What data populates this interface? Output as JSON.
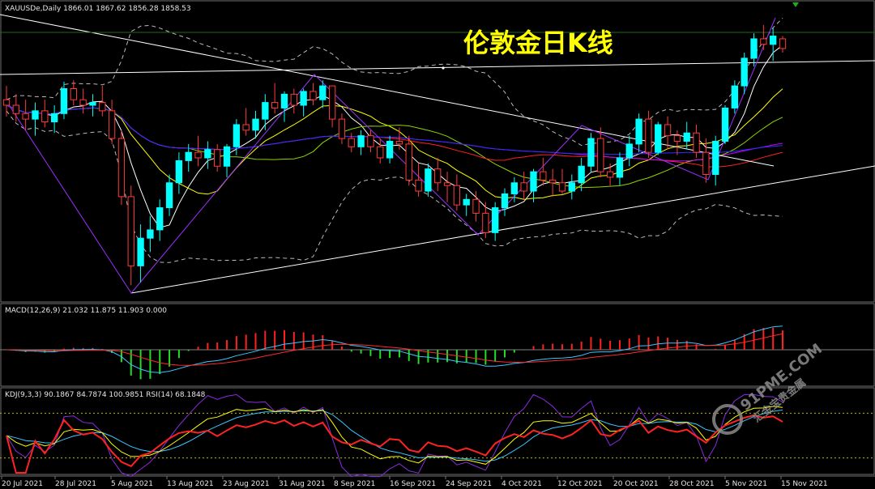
{
  "main_header": "XAUUSDe,Daily  1866.01 1867.62 1856.28 1858.53",
  "overlay_title": "伦敦金日K线",
  "macd_header": "MACD(12,26,9) 21.032 11.875 11.903 0.000",
  "kdj_header": "KDJ(9,3,3) 90.1867 84.7874 100.9851  RSI(14) 68.1848",
  "watermark": {
    "name": "91PME.COM",
    "tagline": "汇金宝贵金属"
  },
  "x_axis_labels": [
    "20 Jul 2021",
    "28 Jul 2021",
    "5 Aug 2021",
    "13 Aug 2021",
    "23 Aug 2021",
    "31 Aug 2021",
    "8 Sep 2021",
    "16 Sep 2021",
    "24 Sep 2021",
    "4 Oct 2021",
    "12 Oct 2021",
    "20 Oct 2021",
    "28 Oct 2021",
    "5 Nov 2021",
    "15 Nov 2021"
  ],
  "colors": {
    "bull_candle": "#00ffff",
    "bear_candle": "#ff3b3b",
    "macd_pos": "#ff2020",
    "macd_neg": "#22dd22",
    "ma_fast": "#ffffff",
    "ma_yellow": "#ffff00",
    "ma_green": "#8fd400",
    "ma_purple": "#c000ff",
    "ma_blue": "#2f2fff",
    "ma_red": "#ff2020",
    "trendline": "#ffffff",
    "zigzag": "#9b30ff"
  },
  "chart_data": {
    "type": "candlestick",
    "symbol": "XAUUSDe",
    "timeframe": "Daily",
    "last_bar": {
      "open": 1866.01,
      "high": 1867.62,
      "low": 1856.28,
      "close": 1858.53
    },
    "candles": [
      [
        1822,
        1832,
        1810,
        1818
      ],
      [
        1818,
        1826,
        1806,
        1812
      ],
      [
        1812,
        1822,
        1800,
        1808
      ],
      [
        1808,
        1820,
        1796,
        1814
      ],
      [
        1814,
        1822,
        1802,
        1806
      ],
      [
        1806,
        1818,
        1798,
        1812
      ],
      [
        1812,
        1835,
        1808,
        1830
      ],
      [
        1830,
        1836,
        1818,
        1822
      ],
      [
        1822,
        1830,
        1812,
        1818
      ],
      [
        1818,
        1826,
        1810,
        1820
      ],
      [
        1820,
        1832,
        1810,
        1814
      ],
      [
        1814,
        1822,
        1790,
        1794
      ],
      [
        1794,
        1800,
        1746,
        1752
      ],
      [
        1752,
        1760,
        1688,
        1702
      ],
      [
        1702,
        1732,
        1690,
        1722
      ],
      [
        1722,
        1738,
        1712,
        1728
      ],
      [
        1728,
        1750,
        1720,
        1744
      ],
      [
        1744,
        1768,
        1738,
        1762
      ],
      [
        1762,
        1784,
        1754,
        1778
      ],
      [
        1778,
        1790,
        1770,
        1784
      ],
      [
        1784,
        1796,
        1774,
        1780
      ],
      [
        1780,
        1792,
        1772,
        1786
      ],
      [
        1786,
        1790,
        1770,
        1774
      ],
      [
        1774,
        1790,
        1766,
        1788
      ],
      [
        1788,
        1808,
        1782,
        1804
      ],
      [
        1804,
        1816,
        1796,
        1800
      ],
      [
        1800,
        1814,
        1794,
        1808
      ],
      [
        1808,
        1826,
        1800,
        1820
      ],
      [
        1820,
        1834,
        1812,
        1816
      ],
      [
        1816,
        1828,
        1806,
        1826
      ],
      [
        1826,
        1830,
        1812,
        1818
      ],
      [
        1818,
        1830,
        1810,
        1828
      ],
      [
        1828,
        1834,
        1818,
        1822
      ],
      [
        1822,
        1836,
        1816,
        1832
      ],
      [
        1832,
        1832,
        1802,
        1808
      ],
      [
        1808,
        1812,
        1790,
        1794
      ],
      [
        1794,
        1798,
        1784,
        1788
      ],
      [
        1788,
        1800,
        1782,
        1796
      ],
      [
        1796,
        1800,
        1784,
        1788
      ],
      [
        1788,
        1794,
        1776,
        1780
      ],
      [
        1780,
        1796,
        1776,
        1792
      ],
      [
        1792,
        1802,
        1786,
        1790
      ],
      [
        1790,
        1796,
        1760,
        1764
      ],
      [
        1764,
        1776,
        1752,
        1756
      ],
      [
        1756,
        1776,
        1752,
        1772
      ],
      [
        1772,
        1780,
        1756,
        1762
      ],
      [
        1762,
        1770,
        1748,
        1760
      ],
      [
        1760,
        1768,
        1742,
        1746
      ],
      [
        1746,
        1754,
        1738,
        1750
      ],
      [
        1750,
        1756,
        1734,
        1740
      ],
      [
        1740,
        1748,
        1722,
        1726
      ],
      [
        1726,
        1748,
        1720,
        1744
      ],
      [
        1744,
        1758,
        1738,
        1754
      ],
      [
        1754,
        1766,
        1748,
        1762
      ],
      [
        1762,
        1770,
        1750,
        1756
      ],
      [
        1756,
        1772,
        1748,
        1770
      ],
      [
        1770,
        1780,
        1760,
        1764
      ],
      [
        1764,
        1772,
        1752,
        1762
      ],
      [
        1762,
        1772,
        1754,
        1756
      ],
      [
        1756,
        1768,
        1750,
        1762
      ],
      [
        1762,
        1780,
        1756,
        1774
      ],
      [
        1774,
        1798,
        1770,
        1794
      ],
      [
        1794,
        1802,
        1766,
        1770
      ],
      [
        1770,
        1776,
        1760,
        1766
      ],
      [
        1766,
        1784,
        1760,
        1780
      ],
      [
        1780,
        1796,
        1774,
        1790
      ],
      [
        1790,
        1812,
        1784,
        1808
      ],
      [
        1808,
        1814,
        1780,
        1784
      ],
      [
        1784,
        1806,
        1782,
        1804
      ],
      [
        1804,
        1810,
        1786,
        1796
      ],
      [
        1796,
        1800,
        1782,
        1792
      ],
      [
        1792,
        1806,
        1786,
        1798
      ],
      [
        1798,
        1804,
        1780,
        1784
      ],
      [
        1784,
        1794,
        1762,
        1768
      ],
      [
        1768,
        1796,
        1760,
        1792
      ],
      [
        1792,
        1818,
        1790,
        1816
      ],
      [
        1816,
        1836,
        1812,
        1832
      ],
      [
        1832,
        1856,
        1826,
        1852
      ],
      [
        1852,
        1870,
        1846,
        1866
      ],
      [
        1866,
        1876,
        1858,
        1862
      ],
      [
        1862,
        1874,
        1850,
        1868
      ],
      [
        1866,
        1868,
        1856,
        1859
      ]
    ],
    "indicators": {
      "MACD": {
        "params": "12,26,9",
        "values": [
          21.032,
          11.875,
          11.903,
          0.0
        ]
      },
      "KDJ": {
        "params": "9,3,3",
        "values": [
          90.1867,
          84.7874,
          100.9851
        ]
      },
      "RSI": {
        "period": 14,
        "value": 68.1848
      }
    },
    "grid": false
  }
}
